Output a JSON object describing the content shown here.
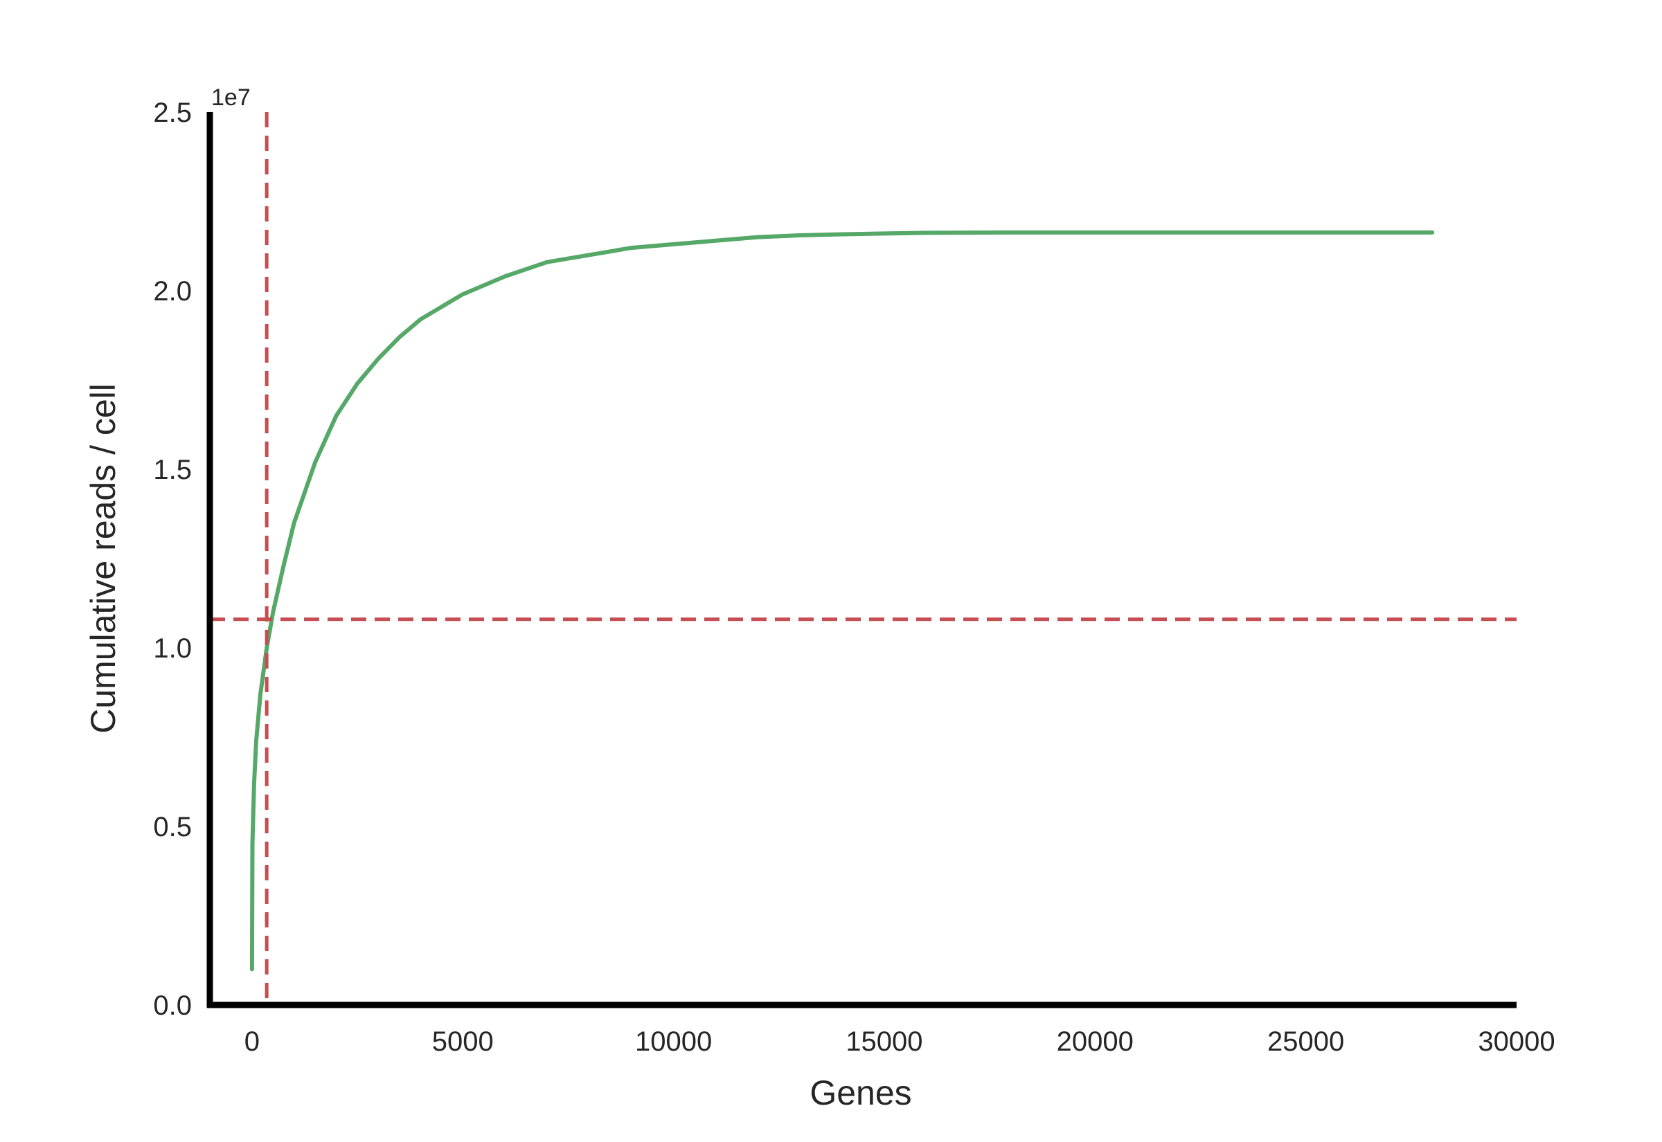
{
  "chart_data": {
    "type": "line",
    "title": "",
    "xlabel": "Genes",
    "ylabel": "Cumulative reads / cell",
    "y_offset_label": "1e7",
    "xlim": [
      -1000,
      30000
    ],
    "ylim": [
      0,
      2.5
    ],
    "x_ticks": [
      0,
      5000,
      10000,
      15000,
      20000,
      25000,
      30000
    ],
    "x_tick_labels": [
      "0",
      "5000",
      "10000",
      "15000",
      "20000",
      "25000",
      "30000"
    ],
    "y_ticks": [
      0.0,
      0.5,
      1.0,
      1.5,
      2.0,
      2.5
    ],
    "y_tick_labels": [
      "0.0",
      "0.5",
      "1.0",
      "1.5",
      "2.0",
      "2.5"
    ],
    "grid": false,
    "series": [
      {
        "color": "#55a868",
        "x": [
          0,
          10,
          50,
          100,
          200,
          350,
          500,
          750,
          1000,
          1500,
          2000,
          2500,
          3000,
          3500,
          4000,
          5000,
          6000,
          7000,
          8000,
          9000,
          10000,
          11000,
          12000,
          13000,
          14000,
          15000,
          16000,
          18000,
          20000,
          22000,
          24000,
          26000,
          28000
        ],
        "y": [
          0.1,
          0.45,
          0.62,
          0.74,
          0.87,
          1.0,
          1.1,
          1.23,
          1.35,
          1.52,
          1.65,
          1.74,
          1.81,
          1.87,
          1.92,
          1.99,
          2.04,
          2.08,
          2.1,
          2.12,
          2.13,
          2.14,
          2.15,
          2.155,
          2.158,
          2.16,
          2.162,
          2.163,
          2.163,
          2.163,
          2.163,
          2.163,
          2.163
        ]
      }
    ],
    "reference_lines": [
      {
        "orientation": "vertical",
        "value": 350,
        "color": "#c44e52",
        "style": "dashed"
      },
      {
        "orientation": "horizontal",
        "value": 1.08,
        "color": "#c44e52",
        "style": "dashed"
      }
    ]
  }
}
